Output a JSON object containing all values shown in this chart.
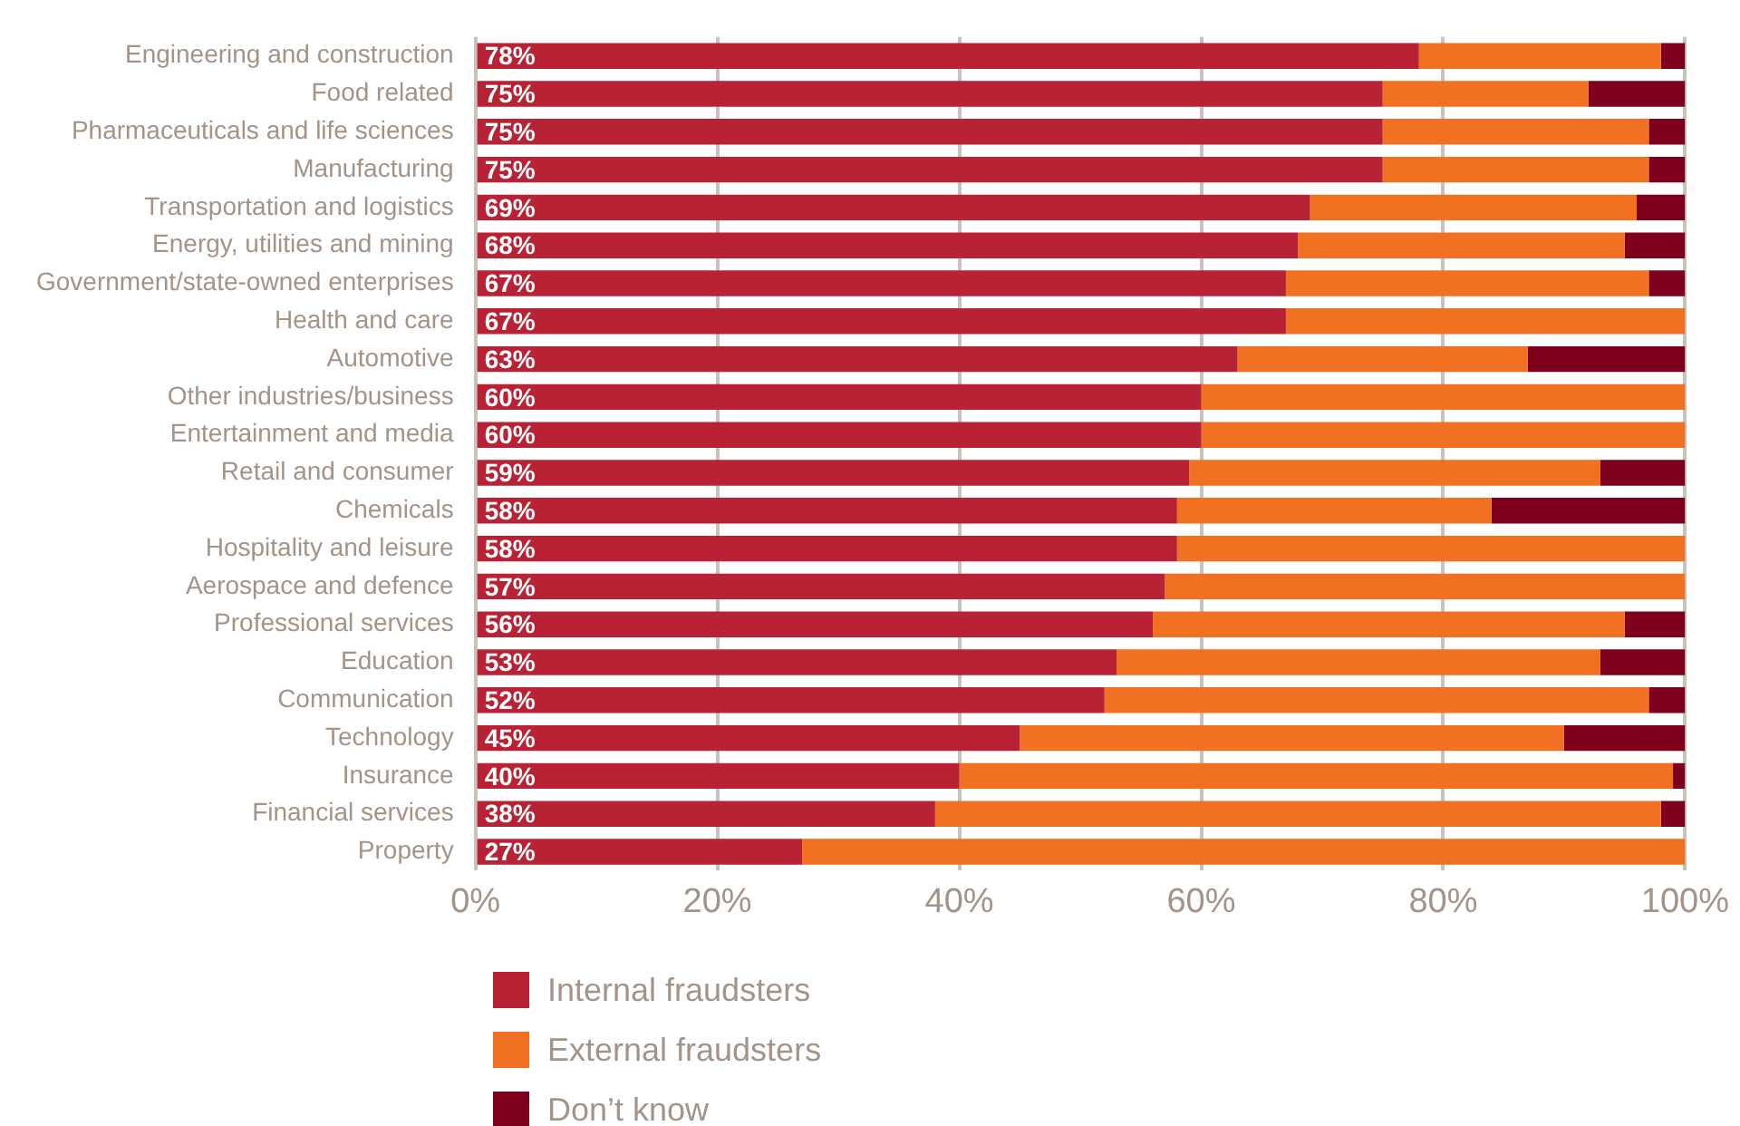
{
  "chart_data": {
    "type": "bar",
    "orientation": "horizontal",
    "stacked": true,
    "categories": [
      "Engineering and construction",
      "Food related",
      "Pharmaceuticals and life sciences",
      "Manufacturing",
      "Transportation and logistics",
      "Energy, utilities and mining",
      "Government/state-owned enterprises",
      "Health and care",
      "Automotive",
      "Other industries/business",
      "Entertainment and media",
      "Retail and consumer",
      "Chemicals",
      "Hospitality and leisure",
      "Aerospace and defence",
      "Professional services",
      "Education",
      "Communication",
      "Technology",
      "Insurance",
      "Financial services",
      "Property"
    ],
    "series": [
      {
        "name": "Internal fraudsters",
        "color": "#b82234",
        "values": [
          78,
          75,
          75,
          75,
          69,
          68,
          67,
          67,
          63,
          60,
          60,
          59,
          58,
          58,
          57,
          56,
          53,
          52,
          45,
          40,
          38,
          27
        ],
        "value_labels": [
          "78%",
          "75%",
          "75%",
          "75%",
          "69%",
          "68%",
          "67%",
          "67%",
          "63%",
          "60%",
          "60%",
          "59%",
          "58%",
          "58%",
          "57%",
          "56%",
          "53%",
          "52%",
          "45%",
          "40%",
          "38%",
          "27%"
        ]
      },
      {
        "name": "External fraudsters",
        "color": "#f27022",
        "values": [
          20,
          17,
          22,
          22,
          27,
          27,
          30,
          33,
          24,
          40,
          40,
          34,
          26,
          42,
          43,
          39,
          40,
          45,
          45,
          59,
          60,
          73
        ]
      },
      {
        "name": "Don’t know",
        "color": "#7f001c",
        "values": [
          2,
          8,
          3,
          3,
          4,
          5,
          3,
          0,
          13,
          0,
          0,
          7,
          16,
          0,
          0,
          5,
          7,
          3,
          10,
          1,
          2,
          0
        ]
      }
    ],
    "xlim": [
      0,
      100
    ],
    "xticks": [
      {
        "value": 0,
        "label": "0%"
      },
      {
        "value": 20,
        "label": "20%"
      },
      {
        "value": 40,
        "label": "40%"
      },
      {
        "value": 60,
        "label": "60%"
      },
      {
        "value": 80,
        "label": "80%"
      },
      {
        "value": 100,
        "label": "100%"
      }
    ],
    "grid": "x",
    "legend": "bottom"
  }
}
